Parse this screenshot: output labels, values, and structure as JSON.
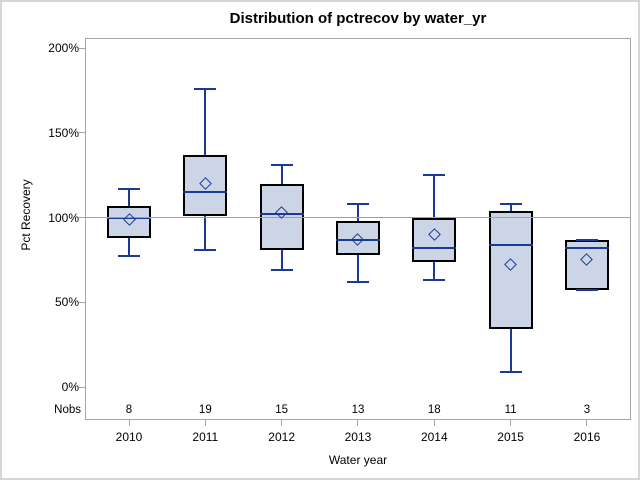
{
  "figure": {
    "title": "Distribution of pctrecov by water_yr",
    "y_axis": {
      "label": "Pct Recovery"
    },
    "x_axis": {
      "label": "Water year"
    },
    "nobs_label": "Nobs"
  },
  "colors": {
    "background": "#ffffff",
    "text": "#000000",
    "outer_border": "#d6d6d6",
    "frame_gray": "#a6a6a6",
    "refline_gray": "#a0a0a0",
    "box_fill": "#ccd5e6",
    "box_border": "#000000",
    "line_blue": "#1a3a96"
  },
  "chart_data": {
    "type": "boxplot",
    "title": "Distribution of pctrecov by water_yr",
    "xlabel": "Water year",
    "ylabel": "Pct Recovery",
    "ylim": [
      0,
      210
    ],
    "grid": false,
    "legend": false,
    "reference_line": 100,
    "yticks": [
      {
        "value": 0,
        "label": "0%"
      },
      {
        "value": 50,
        "label": "50%"
      },
      {
        "value": 100,
        "label": "100%"
      },
      {
        "value": 150,
        "label": "150%"
      },
      {
        "value": 200,
        "label": "200%"
      }
    ],
    "categories": [
      "2010",
      "2011",
      "2012",
      "2013",
      "2014",
      "2015",
      "2016"
    ],
    "nobs": [
      8,
      19,
      15,
      13,
      18,
      11,
      3
    ],
    "series": [
      {
        "category": "2010",
        "nobs": 8,
        "whisker_low": 77,
        "q1": 88,
        "median": 100,
        "q3": 107,
        "whisker_high": 117,
        "mean": 99
      },
      {
        "category": "2011",
        "nobs": 19,
        "whisker_low": 81,
        "q1": 101,
        "median": 115,
        "q3": 137,
        "whisker_high": 176,
        "mean": 120
      },
      {
        "category": "2012",
        "nobs": 15,
        "whisker_low": 69,
        "q1": 81,
        "median": 102,
        "q3": 120,
        "whisker_high": 131,
        "mean": 103
      },
      {
        "category": "2013",
        "nobs": 13,
        "whisker_low": 62,
        "q1": 78,
        "median": 87,
        "q3": 98,
        "whisker_high": 108,
        "mean": 87
      },
      {
        "category": "2014",
        "nobs": 18,
        "whisker_low": 63,
        "q1": 74,
        "median": 82,
        "q3": 100,
        "whisker_high": 125,
        "mean": 90
      },
      {
        "category": "2015",
        "nobs": 11,
        "whisker_low": 9,
        "q1": 34,
        "median": 84,
        "q3": 104,
        "whisker_high": 108,
        "mean": 72
      },
      {
        "category": "2016",
        "nobs": 3,
        "whisker_low": 57,
        "q1": 57,
        "median": 82,
        "q3": 87,
        "whisker_high": 87,
        "mean": 75
      }
    ]
  }
}
